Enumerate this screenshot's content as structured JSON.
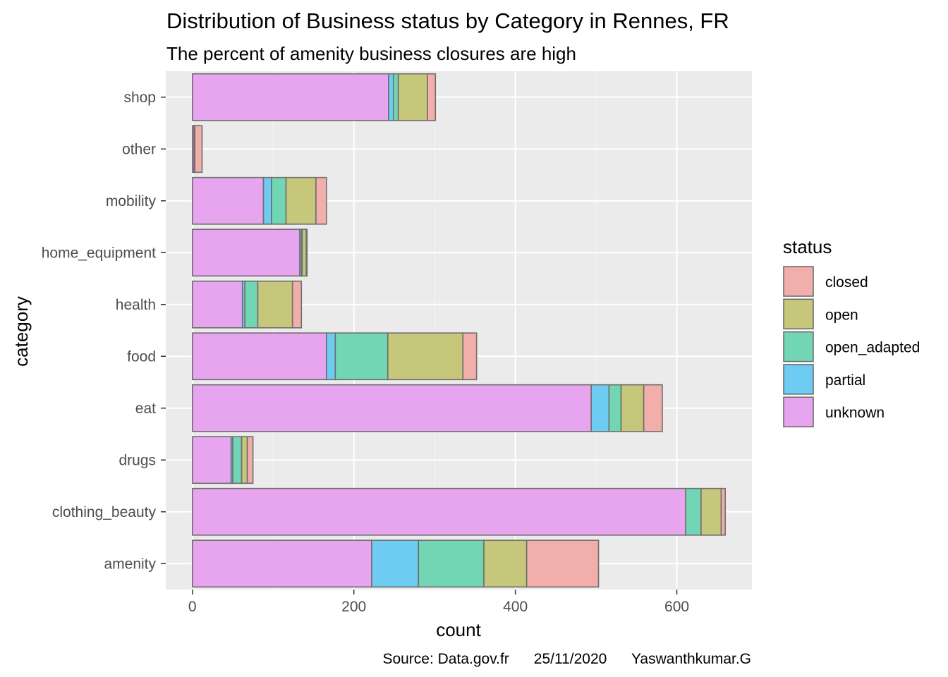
{
  "chart_data": {
    "type": "bar",
    "orientation": "horizontal",
    "stacked": true,
    "title": "Distribution of Business status by Category in Rennes, FR",
    "subtitle": "The percent of amenity business closures are high",
    "xlabel": "count",
    "ylabel": "category",
    "xlim": [
      -33,
      693
    ],
    "xticks": [
      0,
      200,
      400,
      600
    ],
    "xtick_labels": [
      "0",
      "200",
      "400",
      "600"
    ],
    "categories": [
      "amenity",
      "clothing_beauty",
      "drugs",
      "eat",
      "food",
      "health",
      "home_equipment",
      "mobility",
      "other",
      "shop"
    ],
    "stack_order": [
      "unknown",
      "partial",
      "open_adapted",
      "open",
      "closed"
    ],
    "series": [
      {
        "name": "unknown",
        "color": "#e7a4ef",
        "values": [
          222,
          611,
          48,
          494,
          166,
          62,
          133,
          88,
          2,
          243
        ]
      },
      {
        "name": "partial",
        "color": "#6ecbf2",
        "values": [
          58,
          0,
          2,
          22,
          11,
          3,
          2,
          10,
          0,
          6
        ]
      },
      {
        "name": "open_adapted",
        "color": "#72d6b4",
        "values": [
          81,
          19,
          11,
          15,
          65,
          16,
          1,
          18,
          0,
          6
        ]
      },
      {
        "name": "open",
        "color": "#c6c77a",
        "values": [
          53,
          25,
          7,
          28,
          93,
          43,
          5,
          37,
          1,
          36
        ]
      },
      {
        "name": "closed",
        "color": "#f2aeaa",
        "values": [
          89,
          5,
          7,
          23,
          17,
          11,
          1,
          13,
          9,
          10
        ]
      }
    ],
    "legend": {
      "title": "status",
      "position": "right",
      "entries": [
        "closed",
        "open",
        "open_adapted",
        "partial",
        "unknown"
      ],
      "colors": [
        "#f2aeaa",
        "#c6c77a",
        "#72d6b4",
        "#6ecbf2",
        "#e7a4ef"
      ]
    },
    "grid": true,
    "panel_background": "#ebebeb",
    "bar_outline": "#6e6e6e"
  },
  "caption": "Source: Data.gov.fr      25/11/2020      Yaswanthkumar.G"
}
